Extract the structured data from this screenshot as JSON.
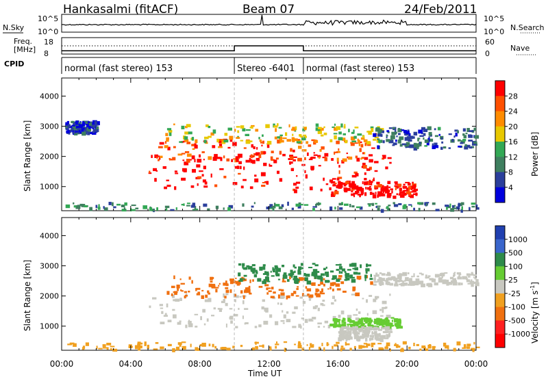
{
  "header": {
    "station": "Hankasalmi (fitACF)",
    "beam": "Beam 07",
    "date": "24/Feb/2011"
  },
  "top_panels": {
    "nsky_label": "N.Sky",
    "nsky_ticks": [
      "10^5",
      "10^0"
    ],
    "nsearch_label": "N.Search",
    "nsearch_ticks": [
      "10^5",
      "10^0"
    ],
    "freq_label_1": "Freq.",
    "freq_label_2": "[MHz]",
    "freq_ticks": [
      "18",
      "8"
    ],
    "nave_label": "Nave",
    "nave_ticks": [
      "60",
      "0"
    ],
    "cpid_label": "CPID",
    "cpid_segments": [
      {
        "label": "normal (fast stereo) 153",
        "start": 0,
        "end": 10
      },
      {
        "label": "Stereo -6401",
        "start": 10,
        "end": 14
      },
      {
        "label": "normal (fast stereo) 153",
        "start": 14,
        "end": 24
      }
    ]
  },
  "colors": {
    "power_scale": [
      "#0000dd",
      "#2b3f9c",
      "#3f7f5f",
      "#33a855",
      "#e8c800",
      "#ff8c00",
      "#ff5000",
      "#ff0000"
    ],
    "velocity_scale": [
      "#2040b0",
      "#3a66cc",
      "#2e8b4a",
      "#66cc33",
      "#c8c8c0",
      "#f0a020",
      "#f07010",
      "#ff2020",
      "#ff0000"
    ],
    "ground_scatter": "#c8c8c0"
  },
  "chart_data": [
    {
      "type": "heatmap",
      "panel": "power",
      "xlabel": "Time UT",
      "ylabel": "Slant Range [km]",
      "xlim": [
        0,
        24
      ],
      "ylim": [
        200,
        4600
      ],
      "x_ticks": [
        "00:00",
        "04:00",
        "08:00",
        "12:00",
        "16:00",
        "20:00",
        "00:00"
      ],
      "y_ticks": [
        "1000",
        "2000",
        "3000",
        "4000"
      ],
      "colorbar_label": "Power [dB]",
      "colorbar_ticks": [
        "4",
        "8",
        "12",
        "16",
        "20",
        "24",
        "28"
      ],
      "regions": [
        {
          "t0": 5.0,
          "t1": 19.0,
          "r0": 900,
          "r1": 2100,
          "value": 28
        },
        {
          "t0": 5.5,
          "t1": 18.0,
          "r0": 1900,
          "r1": 2600,
          "value": 24
        },
        {
          "t0": 6.0,
          "t1": 18.5,
          "r0": 2500,
          "r1": 3100,
          "value": 16
        },
        {
          "t0": 15.5,
          "t1": 20.5,
          "r0": 700,
          "r1": 1200,
          "value": 28
        },
        {
          "t0": 18.0,
          "t1": 24.0,
          "r0": 2300,
          "r1": 3000,
          "value": 8
        },
        {
          "t0": 0.2,
          "t1": 2.0,
          "r0": 2800,
          "r1": 3200,
          "value": 6
        },
        {
          "t0": 0.0,
          "t1": 24.0,
          "r0": 250,
          "r1": 500,
          "value": 10
        }
      ]
    },
    {
      "type": "heatmap",
      "panel": "velocity",
      "xlabel": "Time UT",
      "ylabel": "Slant Range [km]",
      "xlim": [
        0,
        24
      ],
      "ylim": [
        200,
        4600
      ],
      "x_ticks": [
        "00:00",
        "04:00",
        "08:00",
        "12:00",
        "16:00",
        "20:00",
        "00:00"
      ],
      "y_ticks": [
        "1000",
        "2000",
        "3000",
        "4000"
      ],
      "colorbar_label": "Velocity [m s^-1]",
      "colorbar_ticks": [
        "1000",
        "500",
        "100",
        "25",
        "-25",
        "-100",
        "-500",
        "-1000"
      ],
      "regions": [
        {
          "t0": 5.0,
          "t1": 19.0,
          "r0": 1000,
          "r1": 2100,
          "value": "ground"
        },
        {
          "t0": 18.0,
          "t1": 24.0,
          "r0": 2400,
          "r1": 2800,
          "value": "ground"
        },
        {
          "t0": 6.0,
          "t1": 18.0,
          "r0": 2000,
          "r1": 2700,
          "value": -300
        },
        {
          "t0": 10.0,
          "t1": 18.0,
          "r0": 2500,
          "r1": 3100,
          "value": 100
        },
        {
          "t0": 15.5,
          "t1": 19.5,
          "r0": 1000,
          "r1": 1300,
          "value": 80
        },
        {
          "t0": 16.0,
          "t1": 19.0,
          "r0": 600,
          "r1": 1000,
          "value": "ground"
        },
        {
          "t0": 0.0,
          "t1": 24.0,
          "r0": 250,
          "r1": 500,
          "value": -80
        }
      ]
    }
  ]
}
